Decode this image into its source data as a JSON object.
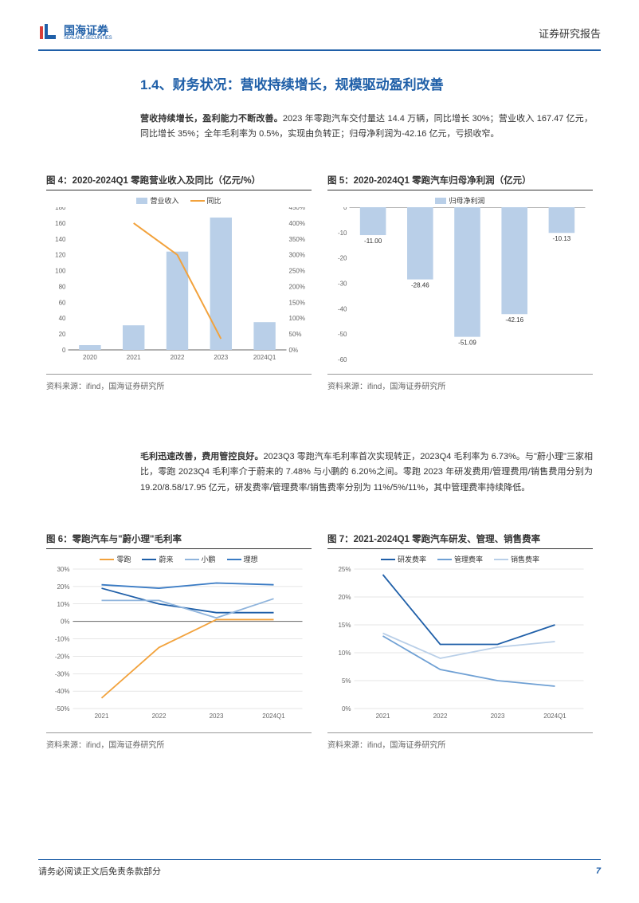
{
  "header": {
    "logo_cn": "国海证券",
    "logo_en": "SEALAND SECURITIES",
    "report_type": "证券研究报告"
  },
  "section_title": "1.4、财务状况：营收持续增长，规模驱动盈利改善",
  "para1_bold": "营收持续增长，盈利能力不断改善。",
  "para1_text": "2023 年零跑汽车交付量达 14.4 万辆，同比增长 30%；营业收入 167.47 亿元，同比增长 35%；全年毛利率为 0.5%，实现由负转正；归母净利润为-42.16 亿元，亏损收窄。",
  "para2_bold": "毛利迅速改善，费用管控良好。",
  "para2_text": "2023Q3 零跑汽车毛利率首次实现转正，2023Q4 毛利率为 6.73%。与\"蔚小理\"三家相比，零跑 2023Q4 毛利率介于蔚来的 7.48% 与小鹏的 6.20%之间。零跑 2023 年研发费用/管理费用/销售费用分别为 19.20/8.58/17.95 亿元，研发费率/管理费率/销售费率分别为 11%/5%/11%，其中管理费率持续降低。",
  "chart4": {
    "title": "图 4：2020-2024Q1 零跑营业收入及同比（亿元/%）",
    "source": "资料来源：ifind，国海证券研究所",
    "type": "bar_line",
    "categories": [
      "2020",
      "2021",
      "2022",
      "2023",
      "2024Q1"
    ],
    "bar_values": [
      6,
      31,
      124,
      167,
      35
    ],
    "line_values": [
      null,
      400,
      300,
      35,
      null
    ],
    "y1_ticks": [
      0,
      20,
      40,
      60,
      80,
      100,
      120,
      140,
      160,
      180
    ],
    "y2_ticks": [
      "0%",
      "50%",
      "100%",
      "150%",
      "200%",
      "250%",
      "300%",
      "350%",
      "400%",
      "450%"
    ],
    "bar_color": "#b9cfe8",
    "line_color": "#f2a23c",
    "legend_bar": "营业收入",
    "legend_line": "同比",
    "y1_max": 180,
    "y2_max": 450
  },
  "chart5": {
    "title": "图 5：2020-2024Q1 零跑汽车归母净利润（亿元）",
    "source": "资料来源：ifind，国海证券研究所",
    "type": "bar",
    "categories": [
      "2020",
      "2021",
      "2022",
      "2023",
      "2024Q1"
    ],
    "values": [
      -11.0,
      -28.46,
      -51.09,
      -42.16,
      -10.13
    ],
    "labels": [
      "-11.00",
      "-28.46",
      "-51.09",
      "-42.16",
      "-10.13"
    ],
    "y_ticks": [
      -60,
      -50,
      -40,
      -30,
      -20,
      -10,
      0
    ],
    "bar_color": "#b9cfe8",
    "legend": "归母净利润",
    "y_min": -60,
    "y_max": 0
  },
  "chart6": {
    "title": "图 6：零跑汽车与\"蔚小理\"毛利率",
    "source": "资料来源：ifind，国海证券研究所",
    "type": "line",
    "categories": [
      "2021",
      "2022",
      "2023",
      "2024Q1"
    ],
    "series": [
      {
        "name": "零跑",
        "color": "#f2a23c",
        "values": [
          -44,
          -15,
          1,
          1
        ]
      },
      {
        "name": "蔚来",
        "color": "#1f5fa8",
        "values": [
          19,
          10,
          5,
          5
        ]
      },
      {
        "name": "小鹏",
        "color": "#8fb4dc",
        "values": [
          12,
          12,
          2,
          13
        ]
      },
      {
        "name": "理想",
        "color": "#3a7bc4",
        "values": [
          21,
          19,
          22,
          21
        ]
      }
    ],
    "y_ticks": [
      "-50%",
      "-40%",
      "-30%",
      "-20%",
      "-10%",
      "0%",
      "10%",
      "20%",
      "30%"
    ],
    "y_min": -50,
    "y_max": 30
  },
  "chart7": {
    "title": "图 7：2021-2024Q1 零跑汽车研发、管理、销售费率",
    "source": "资料来源：ifind，国海证券研究所",
    "type": "line",
    "categories": [
      "2021",
      "2022",
      "2023",
      "2024Q1"
    ],
    "series": [
      {
        "name": "研发费率",
        "color": "#1f5fa8",
        "values": [
          24,
          11.5,
          11.5,
          15
        ]
      },
      {
        "name": "管理费率",
        "color": "#6fa0d4",
        "values": [
          13,
          7,
          5,
          4
        ]
      },
      {
        "name": "销售费率",
        "color": "#b9cfe8",
        "values": [
          13.5,
          9,
          11,
          12
        ]
      }
    ],
    "y_ticks": [
      "0%",
      "5%",
      "10%",
      "15%",
      "20%",
      "25%"
    ],
    "y_min": 0,
    "y_max": 25
  },
  "footer": {
    "disclaimer": "请务必阅读正文后免责条款部分",
    "page_num": "7"
  }
}
